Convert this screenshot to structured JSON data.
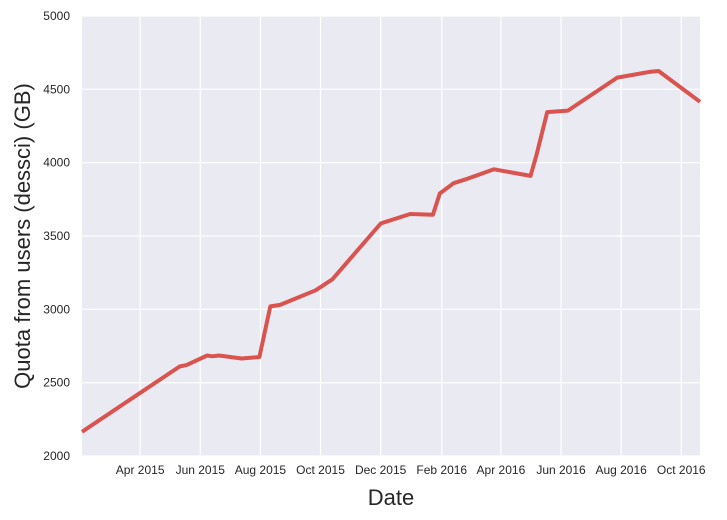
{
  "chart_data": {
    "type": "line",
    "title": "",
    "xlabel": "Date",
    "ylabel": "Quota from users (dessci) (GB)",
    "xlim": [
      "2015-02-01",
      "2016-10-20"
    ],
    "ylim": [
      2000,
      5000
    ],
    "yticks": [
      2000,
      2500,
      3000,
      3500,
      4000,
      4500,
      5000
    ],
    "xticks": [
      {
        "date": "2015-04-01",
        "label": "Apr 2015"
      },
      {
        "date": "2015-06-01",
        "label": "Jun 2015"
      },
      {
        "date": "2015-08-01",
        "label": "Aug 2015"
      },
      {
        "date": "2015-10-01",
        "label": "Oct 2015"
      },
      {
        "date": "2015-12-01",
        "label": "Dec 2015"
      },
      {
        "date": "2016-02-01",
        "label": "Feb 2016"
      },
      {
        "date": "2016-04-01",
        "label": "Apr 2016"
      },
      {
        "date": "2016-06-01",
        "label": "Jun 2016"
      },
      {
        "date": "2016-08-01",
        "label": "Aug 2016"
      },
      {
        "date": "2016-10-01",
        "label": "Oct 2016"
      }
    ],
    "grid": true,
    "colors": {
      "background": "#eaeaf2",
      "grid": "#ffffff",
      "line": "#d9534f"
    },
    "series": [
      {
        "name": "",
        "x": [
          "2015-02-01",
          "2015-05-11",
          "2015-05-18",
          "2015-06-08",
          "2015-06-13",
          "2015-06-20",
          "2015-07-13",
          "2015-07-31",
          "2015-08-11",
          "2015-08-21",
          "2015-09-26",
          "2015-10-13",
          "2015-12-01",
          "2015-12-31",
          "2016-01-23",
          "2016-01-30",
          "2016-02-13",
          "2016-02-27",
          "2016-03-25",
          "2016-05-01",
          "2016-05-07",
          "2016-05-18",
          "2016-06-08",
          "2016-07-28",
          "2016-08-31",
          "2016-09-08",
          "2016-10-20"
        ],
        "values": [
          2165,
          2610,
          2620,
          2685,
          2680,
          2685,
          2665,
          2675,
          3020,
          3030,
          3130,
          3205,
          3585,
          3650,
          3645,
          3790,
          3860,
          3890,
          3955,
          3910,
          4050,
          4345,
          4355,
          4580,
          4620,
          4625,
          4415
        ]
      }
    ]
  }
}
